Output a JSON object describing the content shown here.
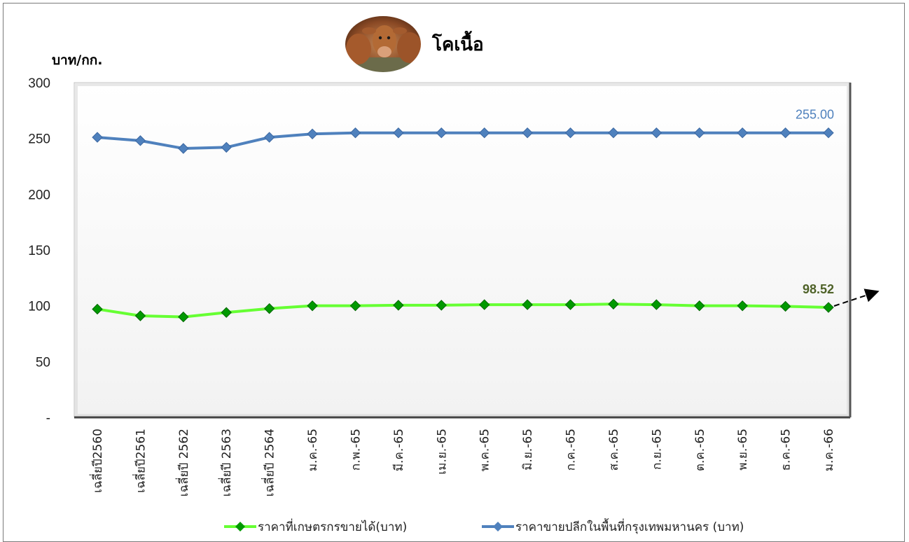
{
  "chart_data": {
    "type": "line",
    "title": "โคเนื้อ",
    "ylabel": "บาท/กก.",
    "ylim": [
      0,
      300
    ],
    "yticks": [
      "-",
      "50",
      "100",
      "150",
      "200",
      "250",
      "300"
    ],
    "categories": [
      "เฉลี่ยปี2560",
      "เฉลี่ยปี2561",
      "เฉลี่ยปี 2562",
      "เฉลี่ยปี 2563",
      "เฉลี่ยปี 2564",
      "ม.ค.-65",
      "ก.พ.-65",
      "มี.ค.-65",
      "เม.ย.-65",
      "พ.ค.-65",
      "มิ.ย.-65",
      "ก.ค.-65",
      "ส.ค.-65",
      "ก.ย.-65",
      "ต.ค.-65",
      "พ.ย.-65",
      "ธ.ค.-65",
      "ม.ค.-66"
    ],
    "series": [
      {
        "name": "ราคาที่เกษตรกรขายได้(บาท)",
        "color": "#66ff33",
        "marker_color": "#009900",
        "values": [
          97.0,
          91.0,
          90.0,
          94.0,
          97.5,
          100.0,
          100.0,
          100.5,
          100.5,
          101.0,
          101.0,
          101.0,
          101.5,
          101.0,
          100.0,
          100.0,
          99.5,
          98.52
        ],
        "end_label": "98.52"
      },
      {
        "name": "ราคาขายปลีกในพื้นที่กรุงเทพมหานคร (บาท)",
        "color": "#4f81bd",
        "marker_color": "#4f81bd",
        "values": [
          251.0,
          248.0,
          241.0,
          242.0,
          251.0,
          254.0,
          255.0,
          255.0,
          255.0,
          255.0,
          255.0,
          255.0,
          255.0,
          255.0,
          255.0,
          255.0,
          255.0,
          255.0
        ],
        "end_label": "255.00"
      }
    ],
    "grid": false,
    "legend": "bottom"
  },
  "image": {
    "icon": "cow-icon"
  }
}
